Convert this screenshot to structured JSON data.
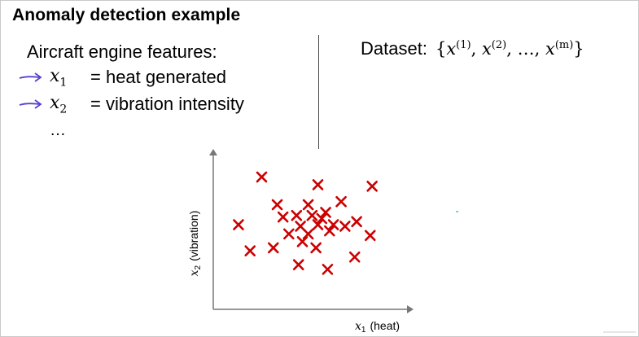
{
  "title": "Anomaly detection example",
  "features": {
    "heading": "Aircraft engine features:",
    "items": [
      {
        "var": "x",
        "sub": "1",
        "desc": "= heat generated"
      },
      {
        "var": "x",
        "sub": "2",
        "desc": "= vibration intensity"
      }
    ],
    "ellipsis": "…"
  },
  "dataset": {
    "label": "Dataset:",
    "open_brace": "{",
    "x": "x",
    "sup1": "(1)",
    "sup2": "(2)",
    "sup_m": "(m)",
    "comma": ",",
    "dots": "…",
    "close_brace": "}"
  },
  "colors": {
    "marker": "#cc0000",
    "arrow": "#5a3fd0",
    "axis": "#777777"
  },
  "chart_data": {
    "type": "scatter",
    "xlabel_var": "x",
    "xlabel_sub": "1",
    "xlabel_text": "(heat)",
    "ylabel_var": "x",
    "ylabel_sub": "2",
    "ylabel_text": "(vibration)",
    "xlim": [
      0,
      100
    ],
    "ylim": [
      0,
      100
    ],
    "grid": false,
    "points": [
      {
        "x": 25,
        "y": 86
      },
      {
        "x": 54,
        "y": 81
      },
      {
        "x": 82,
        "y": 80
      },
      {
        "x": 33,
        "y": 68
      },
      {
        "x": 49,
        "y": 68
      },
      {
        "x": 66,
        "y": 70
      },
      {
        "x": 58,
        "y": 63
      },
      {
        "x": 36,
        "y": 60
      },
      {
        "x": 43,
        "y": 61
      },
      {
        "x": 51,
        "y": 61
      },
      {
        "x": 56,
        "y": 59
      },
      {
        "x": 74,
        "y": 57
      },
      {
        "x": 13,
        "y": 55
      },
      {
        "x": 45,
        "y": 54
      },
      {
        "x": 54,
        "y": 55
      },
      {
        "x": 62,
        "y": 55
      },
      {
        "x": 68,
        "y": 54
      },
      {
        "x": 39,
        "y": 49
      },
      {
        "x": 49,
        "y": 49
      },
      {
        "x": 60,
        "y": 51
      },
      {
        "x": 81,
        "y": 48
      },
      {
        "x": 46,
        "y": 44
      },
      {
        "x": 31,
        "y": 40
      },
      {
        "x": 53,
        "y": 40
      },
      {
        "x": 19,
        "y": 38
      },
      {
        "x": 73,
        "y": 34
      },
      {
        "x": 44,
        "y": 29
      },
      {
        "x": 59,
        "y": 26
      }
    ]
  }
}
